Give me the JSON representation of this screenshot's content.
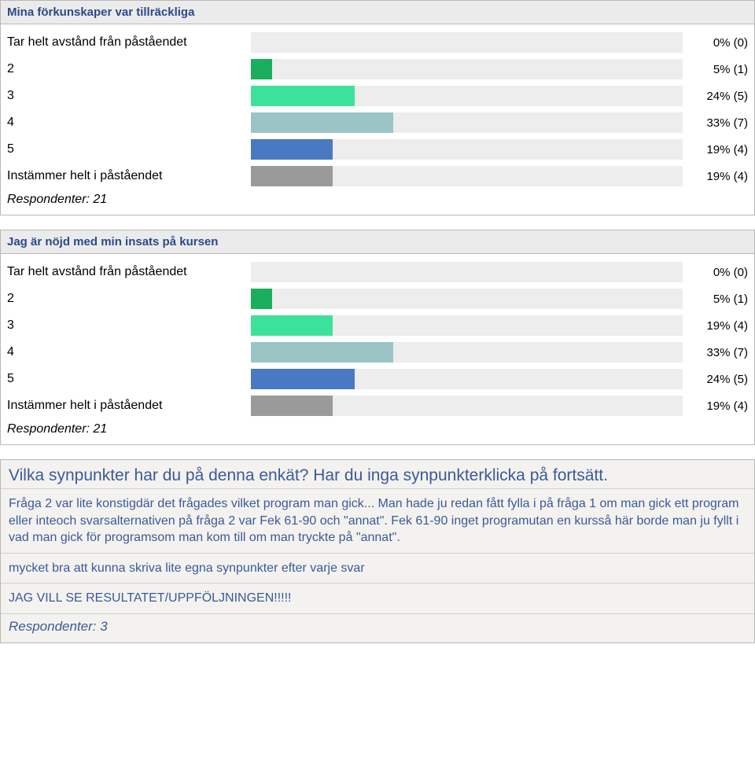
{
  "charts": [
    {
      "title": "Mina förkunskaper var tillräckliga",
      "track_color": "#ededed",
      "max_percent": 100,
      "rows": [
        {
          "label": "Tar helt avstånd från påståendet",
          "percent": 0,
          "count": 0,
          "color": "#34c47a",
          "display": "0% (0)"
        },
        {
          "label": "2",
          "percent": 5,
          "count": 1,
          "color": "#1aaf5d",
          "display": "5% (1)"
        },
        {
          "label": "3",
          "percent": 24,
          "count": 5,
          "color": "#3de29a",
          "display": "24% (5)"
        },
        {
          "label": "4",
          "percent": 33,
          "count": 7,
          "color": "#9bc4c4",
          "display": "33% (7)"
        },
        {
          "label": "5",
          "percent": 19,
          "count": 4,
          "color": "#4a79c4",
          "display": "19% (4)"
        },
        {
          "label": "Instämmer helt i påståendet",
          "percent": 19,
          "count": 4,
          "color": "#9a9a9a",
          "display": "19% (4)"
        }
      ],
      "respondents_label": "Respondenter: 21"
    },
    {
      "title": "Jag är nöjd med min insats på kursen",
      "track_color": "#ededed",
      "max_percent": 100,
      "rows": [
        {
          "label": "Tar helt avstånd från påståendet",
          "percent": 0,
          "count": 0,
          "color": "#34c47a",
          "display": "0% (0)"
        },
        {
          "label": "2",
          "percent": 5,
          "count": 1,
          "color": "#1aaf5d",
          "display": "5% (1)"
        },
        {
          "label": "3",
          "percent": 19,
          "count": 4,
          "color": "#3de29a",
          "display": "19% (4)"
        },
        {
          "label": "4",
          "percent": 33,
          "count": 7,
          "color": "#9bc4c4",
          "display": "33% (7)"
        },
        {
          "label": "5",
          "percent": 24,
          "count": 5,
          "color": "#4a79c4",
          "display": "24% (5)"
        },
        {
          "label": "Instämmer helt i påståendet",
          "percent": 19,
          "count": 4,
          "color": "#9a9a9a",
          "display": "19% (4)"
        }
      ],
      "respondents_label": "Respondenter: 21"
    }
  ],
  "comments": {
    "title": "Vilka synpunkter har du på denna enkät? Har du inga synpunkterklicka på fortsätt.",
    "items": [
      "Fråga 2 var lite konstigdär det frågades vilket program man gick... Man hade ju redan fått fylla i på fråga 1 om man gick ett program eller inteoch svarsalternativen på fråga 2 var Fek 61-90 och \"annat\". Fek 61-90 inget programutan en kursså här borde man ju fyllt i vad man gick för programsom man kom till om man tryckte på \"annat\".",
      "mycket bra att kunna skriva lite egna synpunkter efter varje svar",
      "JAG VILL SE RESULTATET/UPPFÖLJNINGEN!!!!!"
    ],
    "respondents_label": "Respondenter: 3"
  }
}
